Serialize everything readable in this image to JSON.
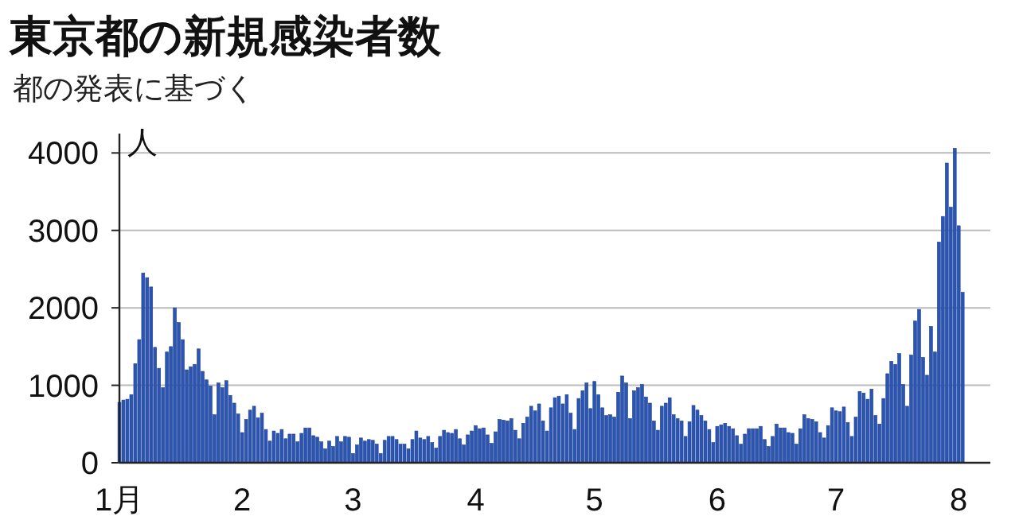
{
  "chart_data": {
    "type": "bar",
    "title": "東京都の新規感染者数",
    "subtitle": "都の発表に基づく",
    "ylabel": "人",
    "x": [
      "--01-01",
      "--01-02",
      "--01-03",
      "--01-04",
      "--01-05",
      "--01-06",
      "--01-07",
      "--01-08",
      "--01-09",
      "--01-10",
      "--01-11",
      "--01-12",
      "--01-13",
      "--01-14",
      "--01-15",
      "--01-16",
      "--01-17",
      "--01-18",
      "--01-19",
      "--01-20",
      "--01-21",
      "--01-22",
      "--01-23",
      "--01-24",
      "--01-25",
      "--01-26",
      "--01-27",
      "--01-28",
      "--01-29",
      "--01-30",
      "--01-31",
      "--02-01",
      "--02-02",
      "--02-03",
      "--02-04",
      "--02-05",
      "--02-06",
      "--02-07",
      "--02-08",
      "--02-09",
      "--02-10",
      "--02-11",
      "--02-12",
      "--02-13",
      "--02-14",
      "--02-15",
      "--02-16",
      "--02-17",
      "--02-18",
      "--02-19",
      "--02-20",
      "--02-21",
      "--02-22",
      "--02-23",
      "--02-24",
      "--02-25",
      "--02-26",
      "--02-27",
      "--02-28",
      "--03-01",
      "--03-02",
      "--03-03",
      "--03-04",
      "--03-05",
      "--03-06",
      "--03-07",
      "--03-08",
      "--03-09",
      "--03-10",
      "--03-11",
      "--03-12",
      "--03-13",
      "--03-14",
      "--03-15",
      "--03-16",
      "--03-17",
      "--03-18",
      "--03-19",
      "--03-20",
      "--03-21",
      "--03-22",
      "--03-23",
      "--03-24",
      "--03-25",
      "--03-26",
      "--03-27",
      "--03-28",
      "--03-29",
      "--03-30",
      "--03-31",
      "--04-01",
      "--04-02",
      "--04-03",
      "--04-04",
      "--04-05",
      "--04-06",
      "--04-07",
      "--04-08",
      "--04-09",
      "--04-10",
      "--04-11",
      "--04-12",
      "--04-13",
      "--04-14",
      "--04-15",
      "--04-16",
      "--04-17",
      "--04-18",
      "--04-19",
      "--04-20",
      "--04-21",
      "--04-22",
      "--04-23",
      "--04-24",
      "--04-25",
      "--04-26",
      "--04-27",
      "--04-28",
      "--04-29",
      "--04-30",
      "--05-01",
      "--05-02",
      "--05-03",
      "--05-04",
      "--05-05",
      "--05-06",
      "--05-07",
      "--05-08",
      "--05-09",
      "--05-10",
      "--05-11",
      "--05-12",
      "--05-13",
      "--05-14",
      "--05-15",
      "--05-16",
      "--05-17",
      "--05-18",
      "--05-19",
      "--05-20",
      "--05-21",
      "--05-22",
      "--05-23",
      "--05-24",
      "--05-25",
      "--05-26",
      "--05-27",
      "--05-28",
      "--05-29",
      "--05-30",
      "--05-31",
      "--06-01",
      "--06-02",
      "--06-03",
      "--06-04",
      "--06-05",
      "--06-06",
      "--06-07",
      "--06-08",
      "--06-09",
      "--06-10",
      "--06-11",
      "--06-12",
      "--06-13",
      "--06-14",
      "--06-15",
      "--06-16",
      "--06-17",
      "--06-18",
      "--06-19",
      "--06-20",
      "--06-21",
      "--06-22",
      "--06-23",
      "--06-24",
      "--06-25",
      "--06-26",
      "--06-27",
      "--06-28",
      "--06-29",
      "--06-30",
      "--07-01",
      "--07-02",
      "--07-03",
      "--07-04",
      "--07-05",
      "--07-06",
      "--07-07",
      "--07-08",
      "--07-09",
      "--07-10",
      "--07-11",
      "--07-12",
      "--07-13",
      "--07-14",
      "--07-15",
      "--07-16",
      "--07-17",
      "--07-18",
      "--07-19",
      "--07-20",
      "--07-21",
      "--07-22",
      "--07-23",
      "--07-24",
      "--07-25",
      "--07-26",
      "--07-27",
      "--07-28",
      "--07-29",
      "--07-30",
      "--07-31",
      "--08-01",
      "--08-02"
    ],
    "values": [
      780,
      810,
      820,
      880,
      1280,
      1590,
      2450,
      2390,
      2270,
      1490,
      1220,
      970,
      1430,
      1500,
      2000,
      1810,
      1590,
      1200,
      1240,
      1270,
      1470,
      1180,
      1070,
      990,
      620,
      1030,
      970,
      1060,
      870,
      770,
      630,
      390,
      560,
      680,
      730,
      580,
      640,
      430,
      280,
      410,
      380,
      430,
      310,
      370,
      370,
      270,
      380,
      450,
      450,
      350,
      330,
      270,
      180,
      280,
      210,
      340,
      270,
      340,
      330,
      120,
      230,
      320,
      280,
      300,
      290,
      240,
      120,
      290,
      340,
      340,
      300,
      240,
      240,
      180,
      300,
      410,
      320,
      300,
      340,
      260,
      190,
      340,
      420,
      390,
      380,
      430,
      310,
      230,
      360,
      410,
      480,
      440,
      450,
      360,
      250,
      400,
      560,
      550,
      540,
      570,
      420,
      310,
      510,
      590,
      730,
      670,
      760,
      540,
      410,
      710,
      840,
      860,
      760,
      880,
      640,
      430,
      830,
      930,
      1030,
      700,
      1050,
      880,
      710,
      610,
      620,
      590,
      910,
      1120,
      1030,
      570,
      930,
      970,
      1010,
      850,
      770,
      540,
      420,
      730,
      770,
      840,
      620,
      570,
      540,
      340,
      530,
      740,
      680,
      610,
      540,
      430,
      260,
      470,
      490,
      510,
      470,
      440,
      350,
      240,
      370,
      440,
      440,
      440,
      470,
      300,
      210,
      340,
      500,
      450,
      450,
      390,
      380,
      240,
      440,
      620,
      570,
      560,
      530,
      390,
      320,
      480,
      710,
      670,
      660,
      720,
      520,
      340,
      590,
      920,
      900,
      820,
      950,
      610,
      500,
      830,
      1150,
      1310,
      1270,
      1410,
      1010,
      730,
      1390,
      1830,
      1980,
      1360,
      1130,
      1760,
      1430,
      2850,
      3180,
      3870,
      3300,
      4060,
      3060,
      2200
    ],
    "color": "#2b55b3",
    "xlim": [
      "--01-01",
      "--08-09"
    ],
    "xticks": [
      {
        "value": "--01-01",
        "label": "1月"
      },
      {
        "value": "--02-01",
        "label": "2"
      },
      {
        "value": "--03-01",
        "label": "3"
      },
      {
        "value": "--04-01",
        "label": "4"
      },
      {
        "value": "--05-01",
        "label": "5"
      },
      {
        "value": "--06-01",
        "label": "6"
      },
      {
        "value": "--07-01",
        "label": "7"
      },
      {
        "value": "--08-01",
        "label": "8"
      }
    ],
    "ylim": [
      0,
      4250
    ],
    "yticks": [
      0,
      1000,
      2000,
      3000,
      4000
    ],
    "grid": "y"
  }
}
